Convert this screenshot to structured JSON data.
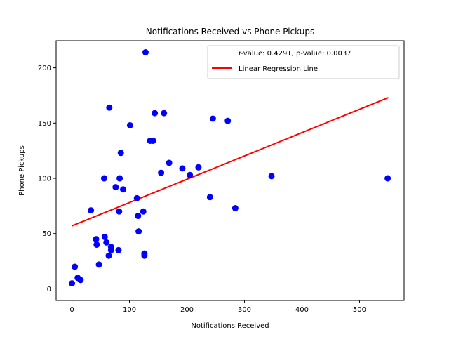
{
  "chart_data": {
    "type": "scatter",
    "title": "Notifications Received vs Phone Pickups",
    "xlabel": "Notifications Received",
    "ylabel": "Phone Pickups",
    "xlim": [
      -27.5,
      577.5
    ],
    "ylim": [
      -10.5,
      224.5
    ],
    "xticks": [
      0,
      100,
      200,
      300,
      400,
      500
    ],
    "yticks": [
      0,
      50,
      100,
      150,
      200
    ],
    "grid": false,
    "legend_position": "top-right",
    "colors": {
      "points": "#0000ff",
      "regression": "#ff0000",
      "axes": "#000000"
    },
    "legend": [
      {
        "label": "r-value: 0.4291, p-value: 0.0037",
        "marker": "none"
      },
      {
        "label": "Linear Regression Line",
        "marker": "line"
      }
    ],
    "regression": {
      "x": [
        0,
        550
      ],
      "y": [
        57,
        173
      ]
    },
    "points": [
      [
        0,
        5
      ],
      [
        5,
        20
      ],
      [
        10,
        10
      ],
      [
        15,
        8
      ],
      [
        33,
        71
      ],
      [
        42,
        45
      ],
      [
        43,
        40
      ],
      [
        47,
        22
      ],
      [
        56,
        100
      ],
      [
        57,
        47
      ],
      [
        60,
        42
      ],
      [
        64,
        30
      ],
      [
        65,
        164
      ],
      [
        68,
        38
      ],
      [
        68,
        35
      ],
      [
        76,
        92
      ],
      [
        81,
        35
      ],
      [
        82,
        70
      ],
      [
        83,
        100
      ],
      [
        85,
        123
      ],
      [
        89,
        90
      ],
      [
        101,
        148
      ],
      [
        113,
        82
      ],
      [
        115,
        66
      ],
      [
        116,
        52
      ],
      [
        124,
        70
      ],
      [
        126,
        32
      ],
      [
        126,
        30
      ],
      [
        128,
        214
      ],
      [
        136,
        134
      ],
      [
        141,
        134
      ],
      [
        144,
        159
      ],
      [
        155,
        105
      ],
      [
        160,
        159
      ],
      [
        169,
        114
      ],
      [
        192,
        109
      ],
      [
        205,
        103
      ],
      [
        220,
        110
      ],
      [
        240,
        83
      ],
      [
        245,
        154
      ],
      [
        271,
        152
      ],
      [
        284,
        73
      ],
      [
        347,
        102
      ],
      [
        549,
        100
      ]
    ]
  }
}
